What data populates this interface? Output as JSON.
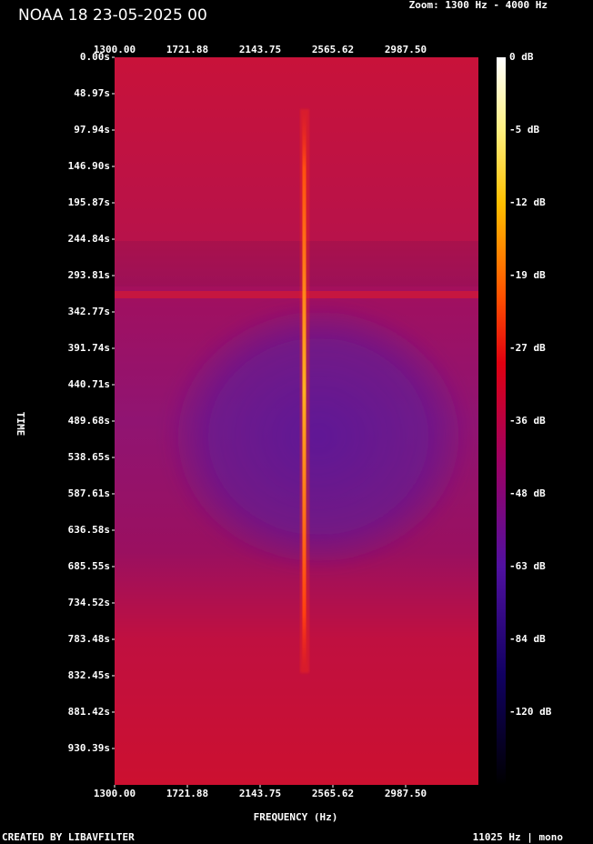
{
  "chart_data": {
    "type": "spectrogram",
    "title": "NOAA 18 23-05-2025 00",
    "subtitle": "Zoom: 1300 Hz - 4000 Hz",
    "x_label": "FREQUENCY (Hz)",
    "y_label": "TIME",
    "footer_left": "CREATED BY LIBAVFILTER",
    "footer_right": "11025 Hz | mono",
    "xlim": [
      1300,
      3409.375
    ],
    "xticks": [
      {
        "value": 1300,
        "label": "1300.00"
      },
      {
        "value": 1721.88,
        "label": "1721.88"
      },
      {
        "value": 2143.75,
        "label": "2143.75"
      },
      {
        "value": 2565.62,
        "label": "2565.62"
      },
      {
        "value": 2987.5,
        "label": "2987.50"
      }
    ],
    "ylim": [
      0,
      979.4
    ],
    "yticks": [
      {
        "value": 0,
        "label": "0.00s"
      },
      {
        "value": 48.97,
        "label": "48.97s"
      },
      {
        "value": 97.94,
        "label": "97.94s"
      },
      {
        "value": 146.9,
        "label": "146.90s"
      },
      {
        "value": 195.87,
        "label": "195.87s"
      },
      {
        "value": 244.84,
        "label": "244.84s"
      },
      {
        "value": 293.81,
        "label": "293.81s"
      },
      {
        "value": 342.77,
        "label": "342.77s"
      },
      {
        "value": 391.74,
        "label": "391.74s"
      },
      {
        "value": 440.71,
        "label": "440.71s"
      },
      {
        "value": 489.68,
        "label": "489.68s"
      },
      {
        "value": 538.65,
        "label": "538.65s"
      },
      {
        "value": 587.61,
        "label": "587.61s"
      },
      {
        "value": 636.58,
        "label": "636.58s"
      },
      {
        "value": 685.55,
        "label": "685.55s"
      },
      {
        "value": 734.52,
        "label": "734.52s"
      },
      {
        "value": 783.48,
        "label": "783.48s"
      },
      {
        "value": 832.45,
        "label": "832.45s"
      },
      {
        "value": 881.42,
        "label": "881.42s"
      },
      {
        "value": 930.39,
        "label": "930.39s"
      }
    ],
    "colorbar_labels": [
      "0 dB",
      "-5 dB",
      "-12 dB",
      "-19 dB",
      "-27 dB",
      "-36 dB",
      "-48 dB",
      "-63 dB",
      "-84 dB",
      "-120 dB"
    ]
  }
}
